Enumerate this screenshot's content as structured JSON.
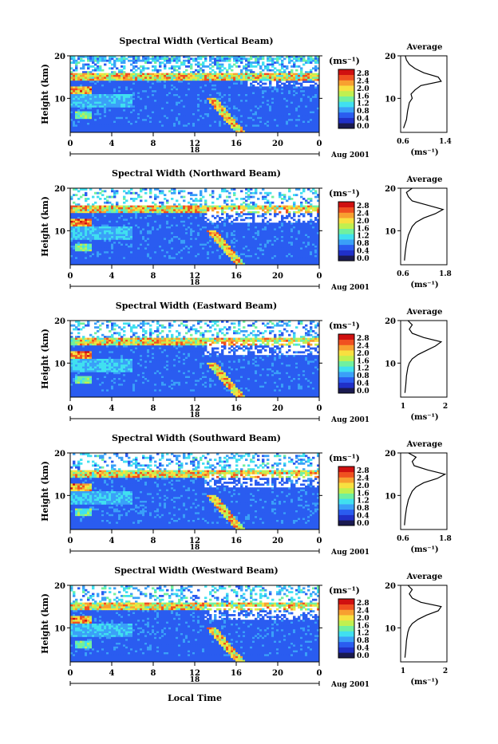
{
  "colorbar": {
    "unit": "(ms⁻¹)",
    "ticks": [
      "2.8",
      "2.4",
      "2.0",
      "1.6",
      "1.2",
      "0.8",
      "0.4",
      "0.0"
    ],
    "colors": [
      "#1a1a50",
      "#2030c8",
      "#2a5cf0",
      "#3aa0f8",
      "#40e0f0",
      "#70f0a0",
      "#c0f050",
      "#f8e040",
      "#f8a030",
      "#f05020",
      "#d01010"
    ]
  },
  "average_label": "Average",
  "date_label": "Aug 2001",
  "day_label": "18",
  "x_axis_title": "Local Time",
  "y_axis_title": "Height (km)",
  "x_ticks": [
    "0",
    "4",
    "8",
    "12",
    "16",
    "20",
    "0"
  ],
  "y_ticks": [
    "20",
    "10"
  ],
  "chart_data": [
    {
      "type": "heatmap",
      "title": "Spectral Width (Vertical Beam)",
      "x": {
        "range": [
          0,
          24
        ],
        "unit": "hour"
      },
      "y": {
        "range": [
          2,
          20
        ],
        "unit": "km"
      },
      "avg_ticks": [
        "0.6",
        "1.4"
      ],
      "average_profile": {
        "type": "line",
        "xlim": [
          0.6,
          1.4
        ],
        "heights": [
          3,
          5,
          7,
          9,
          10,
          11,
          12,
          13,
          14,
          15,
          16,
          17,
          18,
          19,
          20
        ],
        "values": [
          0.65,
          0.7,
          0.72,
          0.75,
          0.8,
          0.78,
          0.85,
          0.95,
          1.3,
          1.25,
          1.0,
          0.85,
          0.75,
          0.7,
          0.68
        ]
      }
    },
    {
      "type": "heatmap",
      "title": "Spectral Width (Northward Beam)",
      "x": {
        "range": [
          0,
          24
        ],
        "unit": "hour"
      },
      "y": {
        "range": [
          2,
          20
        ],
        "unit": "km"
      },
      "avg_ticks": [
        "0.6",
        "1.8"
      ],
      "average_profile": {
        "type": "line",
        "xlim": [
          0.6,
          1.8
        ],
        "heights": [
          3,
          5,
          7,
          9,
          10,
          11,
          12,
          13,
          14,
          15,
          16,
          17,
          18,
          19,
          20
        ],
        "values": [
          0.7,
          0.72,
          0.75,
          0.8,
          0.85,
          0.9,
          1.0,
          1.2,
          1.5,
          1.7,
          1.3,
          0.9,
          0.8,
          0.75,
          0.9
        ]
      }
    },
    {
      "type": "heatmap",
      "title": "Spectral Width (Eastward Beam)",
      "x": {
        "range": [
          0,
          24
        ],
        "unit": "hour"
      },
      "y": {
        "range": [
          2,
          20
        ],
        "unit": "km"
      },
      "avg_ticks": [
        "1",
        "2"
      ],
      "average_profile": {
        "type": "line",
        "xlim": [
          0.6,
          2.2
        ],
        "heights": [
          3,
          5,
          7,
          9,
          10,
          11,
          12,
          13,
          14,
          15,
          16,
          17,
          18,
          19,
          20
        ],
        "values": [
          0.75,
          0.78,
          0.8,
          0.85,
          0.9,
          1.0,
          1.2,
          1.5,
          1.8,
          2.0,
          1.4,
          1.0,
          0.9,
          1.0,
          0.85
        ]
      }
    },
    {
      "type": "heatmap",
      "title": "Spectral Width (Southward Beam)",
      "x": {
        "range": [
          0,
          24
        ],
        "unit": "hour"
      },
      "y": {
        "range": [
          2,
          20
        ],
        "unit": "km"
      },
      "avg_ticks": [
        "0.6",
        "1.8"
      ],
      "average_profile": {
        "type": "line",
        "xlim": [
          0.6,
          1.8
        ],
        "heights": [
          3,
          5,
          7,
          9,
          10,
          11,
          12,
          13,
          14,
          15,
          16,
          17,
          18,
          19,
          20
        ],
        "values": [
          0.7,
          0.72,
          0.75,
          0.8,
          0.85,
          0.9,
          1.0,
          1.2,
          1.55,
          1.75,
          1.3,
          0.95,
          0.9,
          1.0,
          0.8
        ]
      }
    },
    {
      "type": "heatmap",
      "title": "Spectral Width (Westward Beam)",
      "x": {
        "range": [
          0,
          24
        ],
        "unit": "hour"
      },
      "y": {
        "range": [
          2,
          20
        ],
        "unit": "km"
      },
      "avg_ticks": [
        "1",
        "2"
      ],
      "average_profile": {
        "type": "line",
        "xlim": [
          0.6,
          2.2
        ],
        "heights": [
          3,
          5,
          7,
          9,
          10,
          11,
          12,
          13,
          14,
          15,
          16,
          17,
          18,
          19,
          20
        ],
        "values": [
          0.75,
          0.78,
          0.8,
          0.85,
          0.9,
          1.0,
          1.2,
          1.5,
          1.9,
          2.0,
          1.3,
          1.0,
          0.9,
          1.0,
          0.85
        ]
      }
    }
  ]
}
